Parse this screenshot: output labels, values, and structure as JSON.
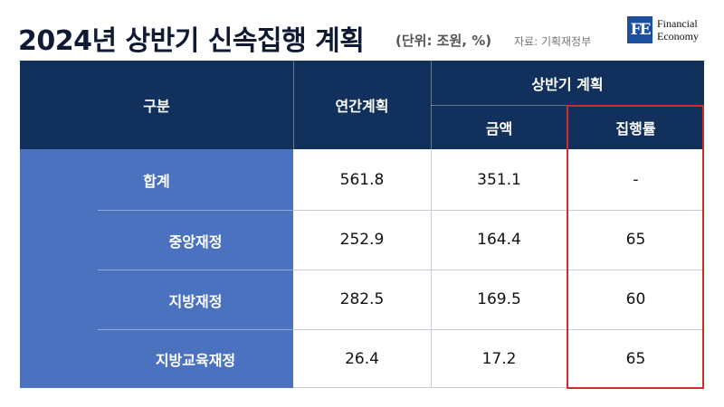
{
  "header": {
    "title": "2024년 상반기 신속집행 계획",
    "unit": "(단위: 조원, %)",
    "source": "자료: 기획재정부"
  },
  "logo": {
    "mark": "FE",
    "line1": "Financial",
    "line2": "Economy"
  },
  "table": {
    "headers": {
      "category": "구분",
      "annual_plan": "연간계획",
      "first_half": "상반기 계획",
      "amount": "금액",
      "execution_rate": "집행률"
    },
    "rows": [
      {
        "label": "합계",
        "annual_plan": "561.8",
        "amount": "351.1",
        "execution_rate": "-"
      },
      {
        "label": "중앙재정",
        "annual_plan": "252.9",
        "amount": "164.4",
        "execution_rate": "65"
      },
      {
        "label": "지방재정",
        "annual_plan": "282.5",
        "amount": "169.5",
        "execution_rate": "60"
      },
      {
        "label": "지방교육재정",
        "annual_plan": "26.4",
        "amount": "17.2",
        "execution_rate": "65"
      }
    ]
  },
  "colors": {
    "header_bg": "#12305c",
    "label_bg": "#4a72bf",
    "highlight": "#d12b2b"
  }
}
